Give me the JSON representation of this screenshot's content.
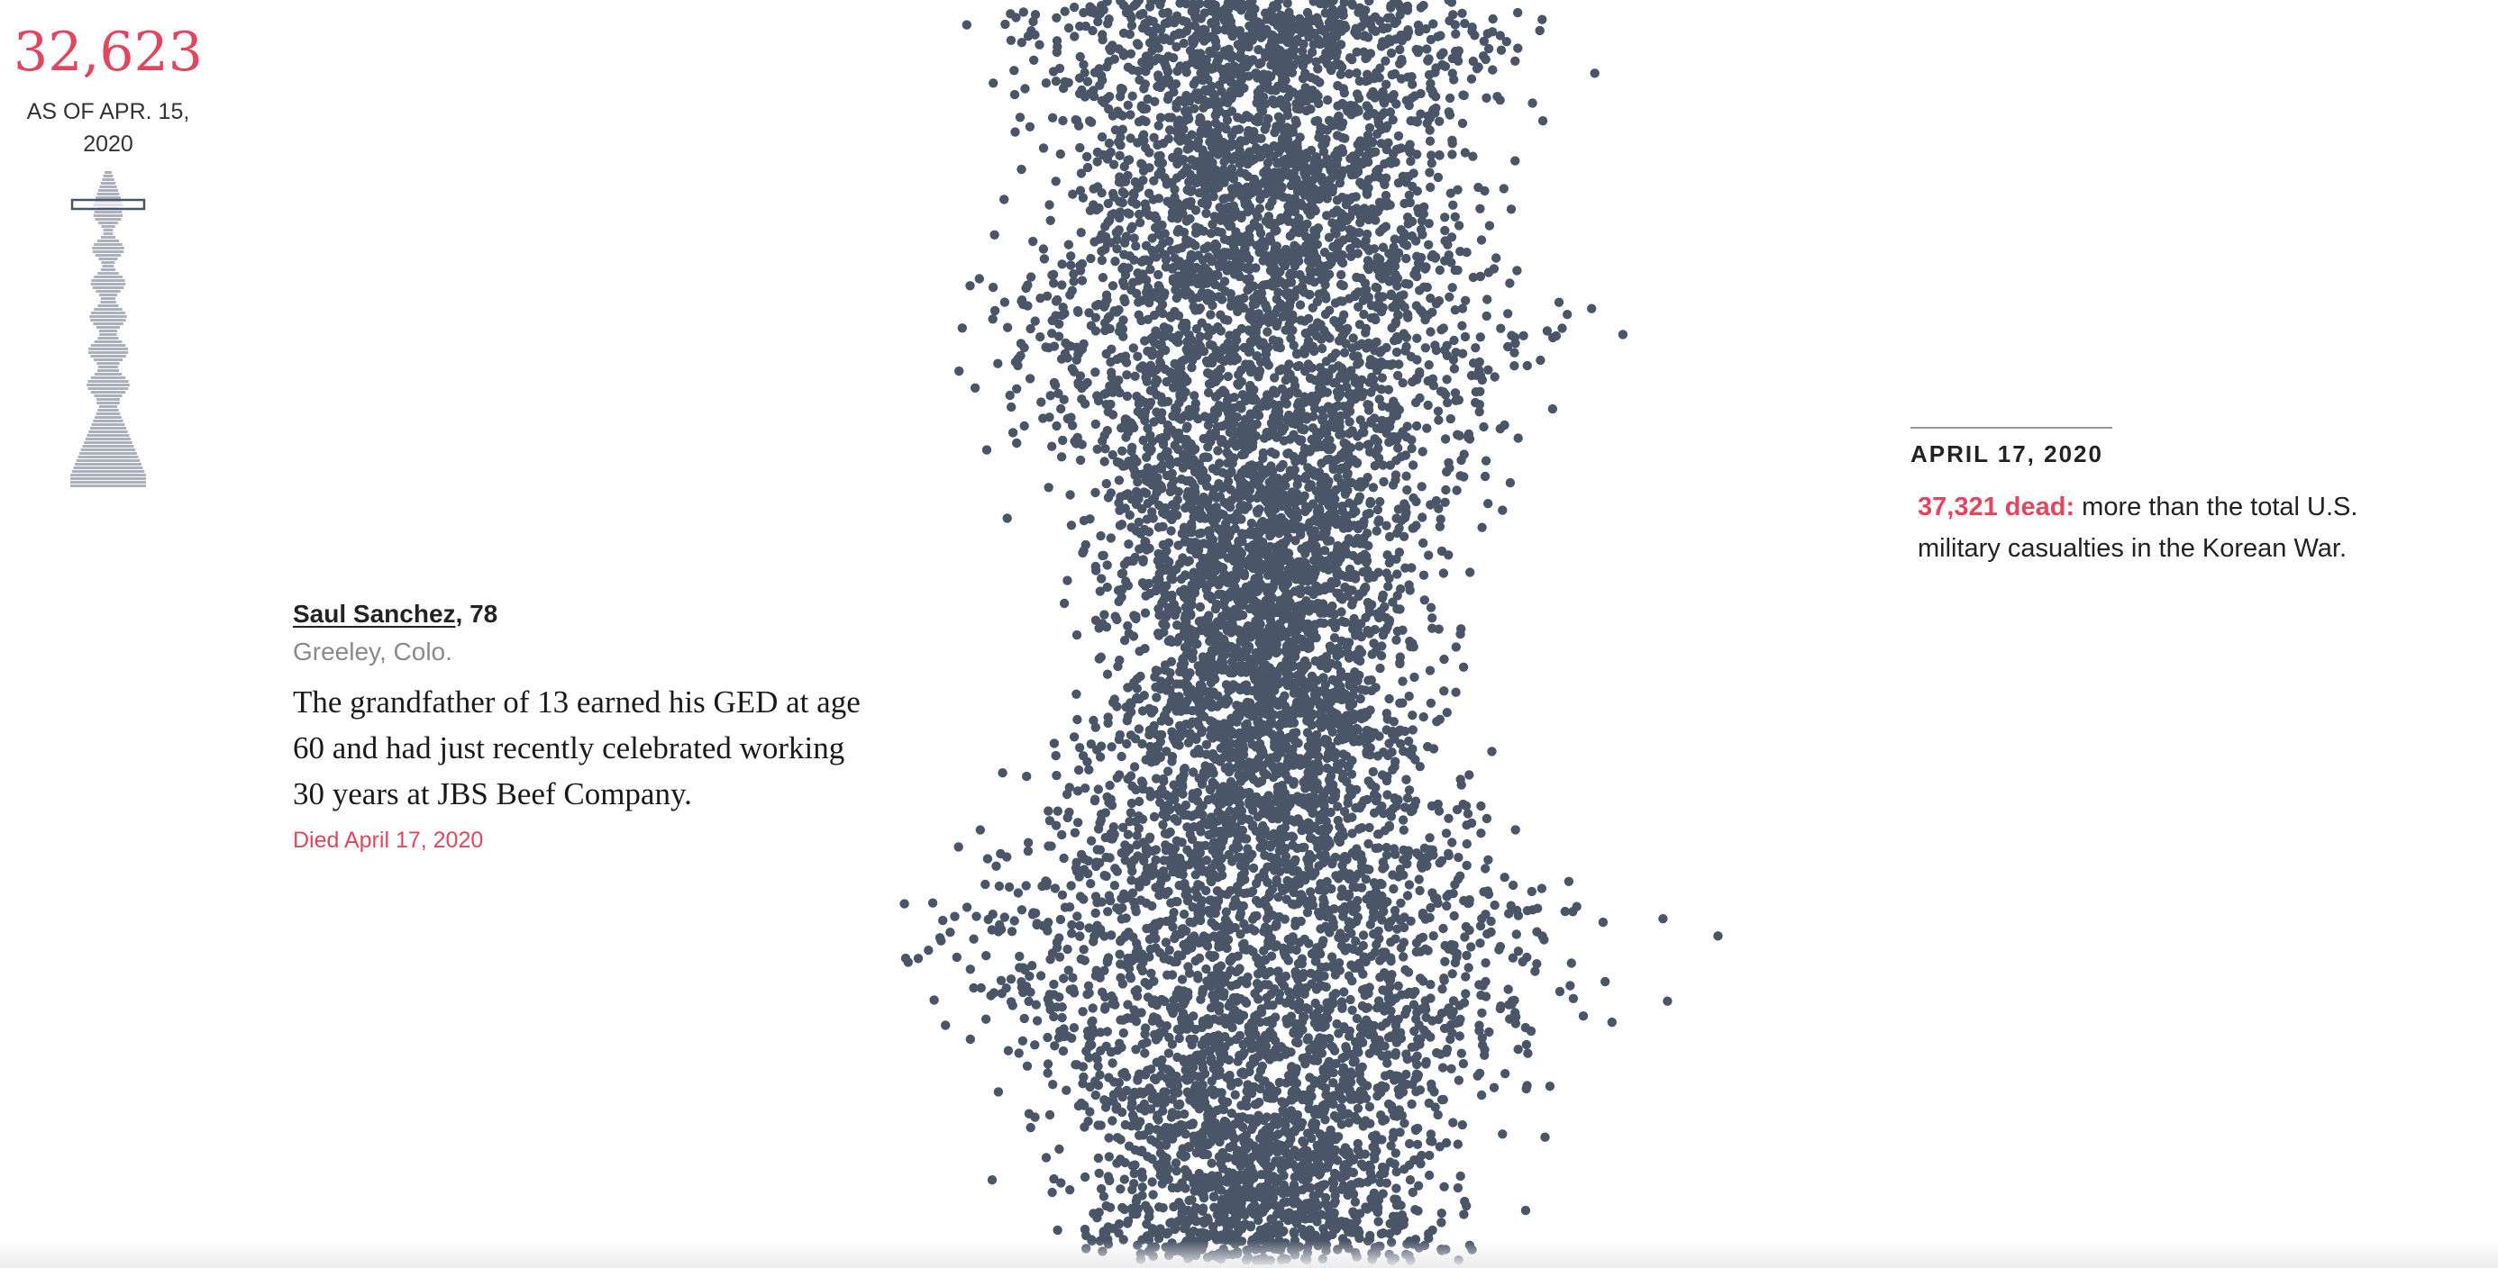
{
  "counter": {
    "number": "32,623",
    "as_of": "AS OF APR. 15, 2020",
    "color": "#e0475f"
  },
  "dots": {
    "color": "#4b5568",
    "minimap_color": "#aab0bd"
  },
  "profile": {
    "name": "Saul Sanchez",
    "age_suffix": ", 78",
    "location": "Greeley, Colo.",
    "bio": "The grandfather of 13 earned his GED at age 60 and had just recently celebrated working 30 years at JBS Beef Company.",
    "died": "Died April 17, 2020"
  },
  "milestone": {
    "date": "APRIL 17, 2020",
    "highlight": "37,321 dead:",
    "text": " more than the total U.S. military casualties in the Korean War."
  }
}
